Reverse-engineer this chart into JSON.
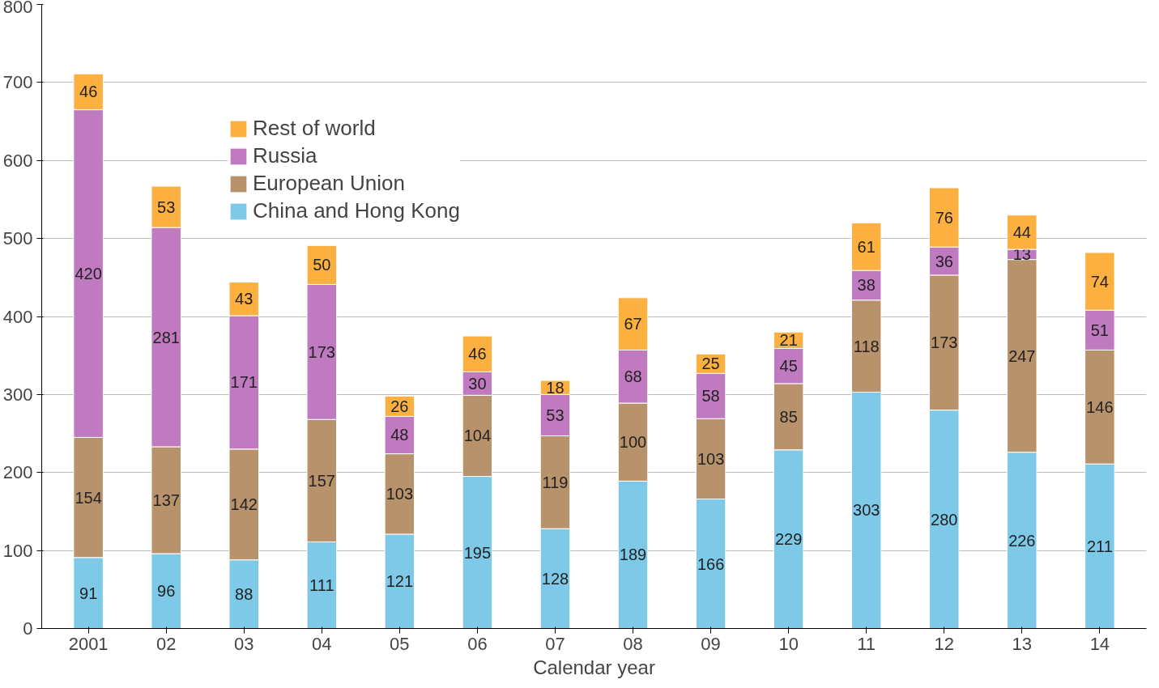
{
  "chart_data": {
    "type": "bar",
    "stacked": true,
    "xlabel": "Calendar year",
    "categories": [
      "2001",
      "02",
      "03",
      "04",
      "05",
      "06",
      "07",
      "08",
      "09",
      "10",
      "11",
      "12",
      "13",
      "14"
    ],
    "series": [
      {
        "name": "China and Hong Kong",
        "color": "#7ec8e8",
        "values": [
          91,
          96,
          88,
          111,
          121,
          195,
          128,
          189,
          166,
          229,
          303,
          280,
          226,
          211
        ]
      },
      {
        "name": "European Union",
        "color": "#b8926a",
        "values": [
          154,
          137,
          142,
          157,
          103,
          104,
          119,
          100,
          103,
          85,
          118,
          173,
          247,
          146
        ]
      },
      {
        "name": "Russia",
        "color": "#c07ac0",
        "values": [
          420,
          281,
          171,
          173,
          48,
          30,
          53,
          68,
          58,
          45,
          38,
          36,
          13,
          51
        ]
      },
      {
        "name": "Rest of world",
        "color": "#fbb040",
        "values": [
          46,
          53,
          43,
          50,
          26,
          46,
          18,
          67,
          25,
          21,
          61,
          76,
          44,
          74
        ]
      }
    ],
    "ylim": [
      0,
      800
    ],
    "yticks": [
      0,
      100,
      200,
      300,
      400,
      500,
      600,
      700,
      800
    ],
    "grid": "y",
    "legend": "top left",
    "data_labels": true
  }
}
